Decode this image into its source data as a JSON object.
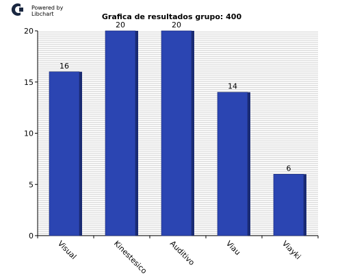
{
  "branding": {
    "powered_by_line1": "Powered by",
    "powered_by_line2": "Libchart"
  },
  "chart_data": {
    "type": "bar",
    "title": "Grafica de resultados grupo: 400",
    "xlabel": "",
    "ylabel": "",
    "categories": [
      "Visual",
      "Kinestesico",
      "Auditivo",
      "Viau",
      "Viayki"
    ],
    "values": [
      16,
      20,
      20,
      14,
      6
    ],
    "ylim": [
      0,
      20
    ],
    "yticks": [
      0,
      5,
      10,
      15,
      20
    ],
    "grid": true,
    "bar_color": "#2b45b2",
    "bar_shade_color": "#1a2b73"
  }
}
